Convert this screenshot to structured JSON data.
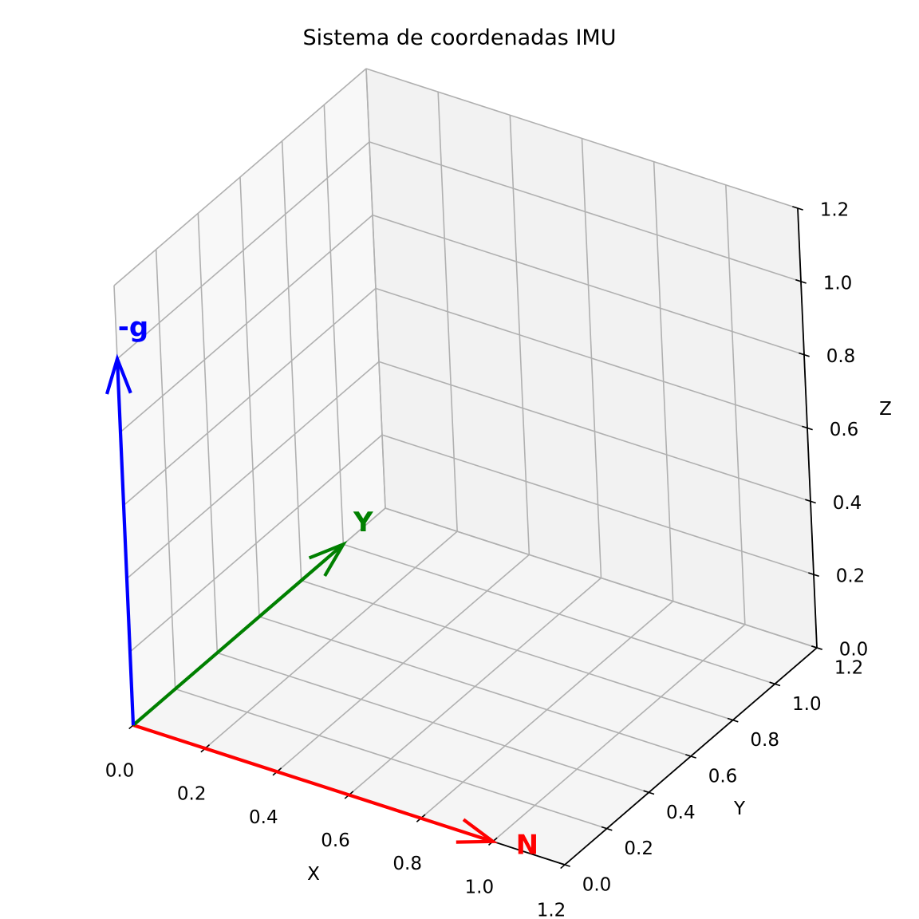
{
  "chart_data": {
    "type": "quiver3d",
    "title": "Sistema de coordenadas IMU",
    "xlabel": "X",
    "ylabel": "Y",
    "zlabel": "Z",
    "xlim": [
      0,
      1.2
    ],
    "ylim": [
      0,
      1.2
    ],
    "zlim": [
      0,
      1.2
    ],
    "ticks": {
      "x": [
        "0.0",
        "0.2",
        "0.4",
        "0.6",
        "0.8",
        "1.0",
        "1.2"
      ],
      "y": [
        "0.0",
        "0.2",
        "0.4",
        "0.6",
        "0.8",
        "1.0",
        "1.2"
      ],
      "z": [
        "0.0",
        "0.2",
        "0.4",
        "0.6",
        "0.8",
        "1.0",
        "1.2"
      ]
    },
    "grid": true,
    "vectors": [
      {
        "label": "N",
        "origin": [
          0,
          0,
          0
        ],
        "direction": [
          1,
          0,
          0
        ],
        "color": "#ff0000"
      },
      {
        "label": "Y",
        "origin": [
          0,
          0,
          0
        ],
        "direction": [
          0,
          1,
          0
        ],
        "color": "#008000"
      },
      {
        "label": "-g",
        "origin": [
          0,
          0,
          0
        ],
        "direction": [
          0,
          0,
          1
        ],
        "color": "#0000ff"
      }
    ]
  }
}
